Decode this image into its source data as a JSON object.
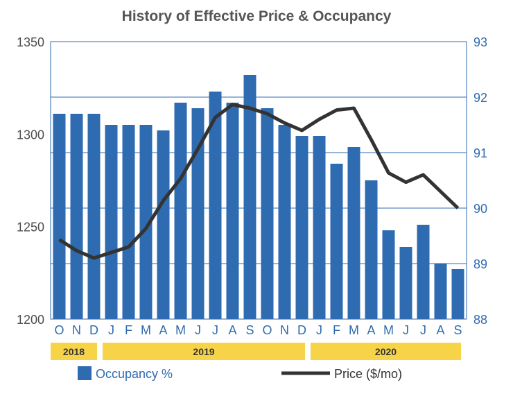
{
  "chart_data": {
    "type": "bar+line",
    "title": "History of Effective Price & Occupancy",
    "categories": [
      "O",
      "N",
      "D",
      "J",
      "F",
      "M",
      "A",
      "M",
      "J",
      "J",
      "A",
      "S",
      "O",
      "N",
      "D",
      "J",
      "F",
      "M",
      "A",
      "M",
      "J",
      "J",
      "A",
      "S"
    ],
    "year_groups": [
      {
        "label": "2018",
        "start": 0,
        "end": 2
      },
      {
        "label": "2019",
        "start": 3,
        "end": 14
      },
      {
        "label": "2020",
        "start": 15,
        "end": 23
      }
    ],
    "left_axis": {
      "ylim": [
        1200,
        1350
      ],
      "ticks": [
        "1200",
        "1250",
        "1300",
        "1350"
      ]
    },
    "right_axis": {
      "ylim": [
        88,
        93
      ],
      "ticks": [
        "88",
        "89",
        "90",
        "91",
        "92",
        "93"
      ]
    },
    "grid": "horizontal",
    "legend_position": "bottom",
    "series": [
      {
        "name": "Occupancy %",
        "kind": "bar",
        "axis": "right",
        "color": "#2e6bb0",
        "values": [
          91.7,
          91.7,
          91.7,
          91.5,
          91.5,
          91.5,
          91.4,
          91.9,
          91.8,
          92.1,
          91.9,
          92.4,
          91.8,
          91.5,
          91.3,
          91.3,
          90.8,
          91.1,
          90.5,
          89.6,
          89.3,
          89.7,
          89.0,
          88.9
        ]
      },
      {
        "name": "Price ($/mo)",
        "kind": "line",
        "axis": "left",
        "color": "#333333",
        "values": [
          1243,
          1237,
          1233,
          1236,
          1239,
          1249,
          1264,
          1276,
          1292,
          1309,
          1316,
          1314,
          1311,
          1306,
          1302,
          1308,
          1313,
          1314,
          1297,
          1279,
          1274,
          1278,
          1269,
          1260
        ]
      }
    ]
  },
  "colors": {
    "bar": "#2e6bb0",
    "line": "#333333",
    "grid": "#2e6bb0",
    "year_band": "#f7d348",
    "title": "#555555",
    "axis_text_left": "#4d4d4d",
    "axis_text_right": "#2e6bb0"
  }
}
